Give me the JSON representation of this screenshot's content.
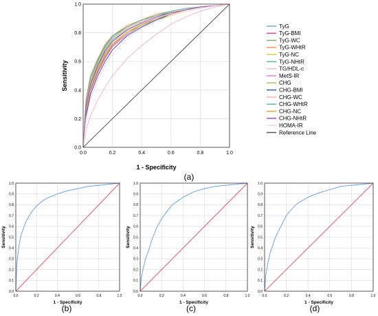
{
  "figure": {
    "panel_labels": [
      "(a)",
      "(b)",
      "(c)",
      "(d)"
    ]
  },
  "chart_data": [
    {
      "panel": "(a)",
      "type": "line",
      "xlabel": "1 - Specificity",
      "ylabel": "Sensitivity",
      "xlim": [
        0,
        1
      ],
      "ylim": [
        0,
        1
      ],
      "xticks": [
        "0.0",
        "0.2",
        "0.4",
        "0.6",
        "0.8",
        "1.0"
      ],
      "yticks": [
        "0.0",
        "0.2",
        "0.4",
        "0.6",
        "0.8",
        "1.0"
      ],
      "grid": true,
      "legend_position": "right",
      "series": [
        {
          "name": "TyG",
          "color": "#6aaed6",
          "x": [
            0,
            0.02,
            0.05,
            0.1,
            0.15,
            0.2,
            0.3,
            0.4,
            0.5,
            0.6,
            0.7,
            0.8,
            0.9,
            1
          ],
          "y": [
            0,
            0.3,
            0.45,
            0.58,
            0.68,
            0.75,
            0.82,
            0.87,
            0.91,
            0.94,
            0.96,
            0.98,
            0.99,
            1
          ]
        },
        {
          "name": "TyG-BMI",
          "color": "#e04a8c",
          "x": [
            0,
            0.02,
            0.05,
            0.1,
            0.15,
            0.2,
            0.3,
            0.4,
            0.5,
            0.6,
            0.7,
            0.8,
            0.9,
            1
          ],
          "y": [
            0,
            0.25,
            0.4,
            0.53,
            0.63,
            0.71,
            0.8,
            0.86,
            0.9,
            0.93,
            0.96,
            0.98,
            0.99,
            1
          ]
        },
        {
          "name": "TyG-WC",
          "color": "#7fb06a",
          "x": [
            0,
            0.02,
            0.05,
            0.1,
            0.15,
            0.2,
            0.3,
            0.4,
            0.5,
            0.6,
            0.7,
            0.8,
            0.9,
            1
          ],
          "y": [
            0,
            0.32,
            0.47,
            0.6,
            0.7,
            0.77,
            0.84,
            0.89,
            0.92,
            0.95,
            0.97,
            0.98,
            0.99,
            1
          ]
        },
        {
          "name": "TyG-WHtR",
          "color": "#f29c50",
          "x": [
            0,
            0.02,
            0.05,
            0.1,
            0.15,
            0.2,
            0.3,
            0.4,
            0.5,
            0.6,
            0.7,
            0.8,
            0.9,
            1
          ],
          "y": [
            0,
            0.34,
            0.5,
            0.62,
            0.72,
            0.78,
            0.85,
            0.89,
            0.93,
            0.95,
            0.97,
            0.98,
            0.99,
            1
          ]
        },
        {
          "name": "TyG-NC",
          "color": "#c9d04b",
          "x": [
            0,
            0.02,
            0.05,
            0.1,
            0.15,
            0.2,
            0.3,
            0.4,
            0.5,
            0.6,
            0.7,
            0.8,
            0.9,
            1
          ],
          "y": [
            0,
            0.28,
            0.43,
            0.56,
            0.66,
            0.73,
            0.81,
            0.86,
            0.9,
            0.93,
            0.96,
            0.98,
            0.99,
            1
          ]
        },
        {
          "name": "TyG-NHtR",
          "color": "#4db89b",
          "x": [
            0,
            0.02,
            0.05,
            0.1,
            0.15,
            0.2,
            0.3,
            0.4,
            0.5,
            0.6,
            0.7,
            0.8,
            0.9,
            1
          ],
          "y": [
            0,
            0.3,
            0.46,
            0.59,
            0.69,
            0.76,
            0.83,
            0.88,
            0.92,
            0.94,
            0.96,
            0.98,
            0.99,
            1
          ]
        },
        {
          "name": "TG/HDL-c",
          "color": "#f2b8cc",
          "x": [
            0,
            0.02,
            0.05,
            0.1,
            0.15,
            0.2,
            0.3,
            0.4,
            0.5,
            0.6,
            0.7,
            0.8,
            0.9,
            1
          ],
          "y": [
            0,
            0.12,
            0.22,
            0.33,
            0.42,
            0.5,
            0.62,
            0.71,
            0.79,
            0.86,
            0.91,
            0.95,
            0.98,
            1
          ]
        },
        {
          "name": "MetS-IR",
          "color": "#e27fe0",
          "x": [
            0,
            0.02,
            0.05,
            0.1,
            0.15,
            0.2,
            0.3,
            0.4,
            0.5,
            0.6,
            0.7,
            0.8,
            0.9,
            1
          ],
          "y": [
            0,
            0.24,
            0.39,
            0.52,
            0.62,
            0.7,
            0.79,
            0.85,
            0.9,
            0.93,
            0.96,
            0.98,
            0.99,
            1
          ]
        },
        {
          "name": "CHG",
          "color": "#9ec85a",
          "x": [
            0,
            0.02,
            0.05,
            0.1,
            0.15,
            0.2,
            0.3,
            0.4,
            0.5,
            0.6,
            0.7,
            0.8,
            0.9,
            1
          ],
          "y": [
            0,
            0.27,
            0.42,
            0.55,
            0.65,
            0.72,
            0.8,
            0.85,
            0.89,
            0.92,
            0.95,
            0.97,
            0.99,
            1
          ]
        },
        {
          "name": "CHG-BMI",
          "color": "#3d5aa8",
          "x": [
            0,
            0.02,
            0.05,
            0.1,
            0.15,
            0.2,
            0.3,
            0.4,
            0.5,
            0.6,
            0.7,
            0.8,
            0.9,
            1
          ],
          "y": [
            0,
            0.22,
            0.37,
            0.5,
            0.6,
            0.68,
            0.78,
            0.84,
            0.89,
            0.93,
            0.96,
            0.98,
            0.99,
            1
          ]
        },
        {
          "name": "CHG-WC",
          "color": "#f5b6a6",
          "x": [
            0,
            0.02,
            0.05,
            0.1,
            0.15,
            0.2,
            0.3,
            0.4,
            0.5,
            0.6,
            0.7,
            0.8,
            0.9,
            1
          ],
          "y": [
            0,
            0.31,
            0.46,
            0.59,
            0.69,
            0.76,
            0.83,
            0.88,
            0.92,
            0.95,
            0.97,
            0.98,
            0.99,
            1
          ]
        },
        {
          "name": "CHG-WHtR",
          "color": "#5fb0a0",
          "x": [
            0,
            0.02,
            0.05,
            0.1,
            0.15,
            0.2,
            0.3,
            0.4,
            0.5,
            0.6,
            0.7,
            0.8,
            0.9,
            1
          ],
          "y": [
            0,
            0.33,
            0.49,
            0.61,
            0.71,
            0.78,
            0.84,
            0.89,
            0.92,
            0.95,
            0.97,
            0.98,
            0.99,
            1
          ]
        },
        {
          "name": "CHG-NC",
          "color": "#e8a040",
          "x": [
            0,
            0.02,
            0.05,
            0.1,
            0.15,
            0.2,
            0.3,
            0.4,
            0.5,
            0.6,
            0.7,
            0.8,
            0.9,
            1
          ],
          "y": [
            0,
            0.26,
            0.41,
            0.54,
            0.64,
            0.72,
            0.8,
            0.86,
            0.9,
            0.93,
            0.96,
            0.98,
            0.99,
            1
          ]
        },
        {
          "name": "CHG-NHtR",
          "color": "#9b4fc0",
          "x": [
            0,
            0.02,
            0.05,
            0.1,
            0.15,
            0.2,
            0.3,
            0.4,
            0.5,
            0.6,
            0.7,
            0.8,
            0.9,
            1
          ],
          "y": [
            0,
            0.29,
            0.44,
            0.57,
            0.67,
            0.74,
            0.82,
            0.87,
            0.91,
            0.94,
            0.96,
            0.98,
            0.99,
            1
          ]
        },
        {
          "name": "HOMA-IR",
          "color": "#f7d4df",
          "x": [
            0,
            0.02,
            0.05,
            0.1,
            0.15,
            0.2,
            0.3,
            0.4,
            0.5,
            0.6,
            0.7,
            0.8,
            0.9,
            1
          ],
          "y": [
            0,
            0.2,
            0.34,
            0.47,
            0.57,
            0.65,
            0.76,
            0.83,
            0.88,
            0.92,
            0.95,
            0.97,
            0.99,
            1
          ]
        },
        {
          "name": "Reference Line",
          "color": "#555555",
          "x": [
            0,
            1
          ],
          "y": [
            0,
            1
          ]
        }
      ]
    },
    {
      "panel": "(b)",
      "type": "line",
      "xlabel": "1 - Specificity",
      "ylabel": "Sensitivity",
      "xlim": [
        0,
        1
      ],
      "ylim": [
        0,
        1
      ],
      "xticks": [
        "0.0",
        "0.2",
        "0.4",
        "0.6",
        "0.8",
        "1.0"
      ],
      "yticks": [
        "0.0",
        "0.1",
        "0.2",
        "0.3",
        "0.4",
        "0.5",
        "0.6",
        "0.7",
        "0.8",
        "0.9",
        "1.0"
      ],
      "grid": true,
      "series": [
        {
          "color": "#6fa3e0",
          "x": [
            0,
            0.01,
            0.03,
            0.05,
            0.08,
            0.1,
            0.15,
            0.2,
            0.25,
            0.3,
            0.4,
            0.5,
            0.6,
            0.7,
            0.8,
            0.9,
            1
          ],
          "y": [
            0,
            0.25,
            0.42,
            0.52,
            0.6,
            0.65,
            0.73,
            0.79,
            0.83,
            0.86,
            0.9,
            0.93,
            0.95,
            0.97,
            0.98,
            0.99,
            1
          ]
        },
        {
          "color": "#e05a6a",
          "x": [
            0,
            1
          ],
          "y": [
            0,
            1
          ]
        }
      ]
    },
    {
      "panel": "(c)",
      "type": "line",
      "xlabel": "1 - Specificity",
      "ylabel": "Sensitivity",
      "xlim": [
        0,
        1
      ],
      "ylim": [
        0,
        1
      ],
      "xticks": [
        "0.0",
        "0.2",
        "0.4",
        "0.6",
        "0.8",
        "1.0"
      ],
      "yticks": [
        "0.0",
        "0.1",
        "0.2",
        "0.3",
        "0.4",
        "0.5",
        "0.6",
        "0.7",
        "0.8",
        "0.9",
        "1.0"
      ],
      "grid": true,
      "series": [
        {
          "color": "#6fa3e0",
          "x": [
            0,
            0.01,
            0.03,
            0.05,
            0.08,
            0.1,
            0.15,
            0.2,
            0.25,
            0.3,
            0.4,
            0.5,
            0.6,
            0.7,
            0.8,
            0.9,
            1
          ],
          "y": [
            0,
            0.12,
            0.22,
            0.3,
            0.38,
            0.45,
            0.58,
            0.67,
            0.74,
            0.8,
            0.87,
            0.92,
            0.95,
            0.97,
            0.98,
            0.99,
            1
          ]
        },
        {
          "color": "#e05a6a",
          "x": [
            0,
            1
          ],
          "y": [
            0,
            1
          ]
        }
      ]
    },
    {
      "panel": "(d)",
      "type": "line",
      "xlabel": "1 - Specificity",
      "ylabel": "Sensitivity",
      "xlim": [
        0,
        1
      ],
      "ylim": [
        0,
        1
      ],
      "xticks": [
        "0.0",
        "0.2",
        "0.4",
        "0.6",
        "0.8",
        "1.0"
      ],
      "yticks": [
        "0.0",
        "0.1",
        "0.2",
        "0.3",
        "0.4",
        "0.5",
        "0.6",
        "0.7",
        "0.8",
        "0.9",
        "1.0"
      ],
      "grid": true,
      "series": [
        {
          "color": "#6fa3e0",
          "x": [
            0,
            0.01,
            0.03,
            0.05,
            0.08,
            0.1,
            0.15,
            0.2,
            0.25,
            0.3,
            0.4,
            0.5,
            0.6,
            0.7,
            0.8,
            0.9,
            1
          ],
          "y": [
            0,
            0.14,
            0.26,
            0.35,
            0.44,
            0.5,
            0.6,
            0.7,
            0.76,
            0.81,
            0.87,
            0.91,
            0.94,
            0.97,
            0.98,
            0.99,
            1
          ]
        },
        {
          "color": "#e05a6a",
          "x": [
            0,
            1
          ],
          "y": [
            0,
            1
          ]
        }
      ]
    }
  ]
}
